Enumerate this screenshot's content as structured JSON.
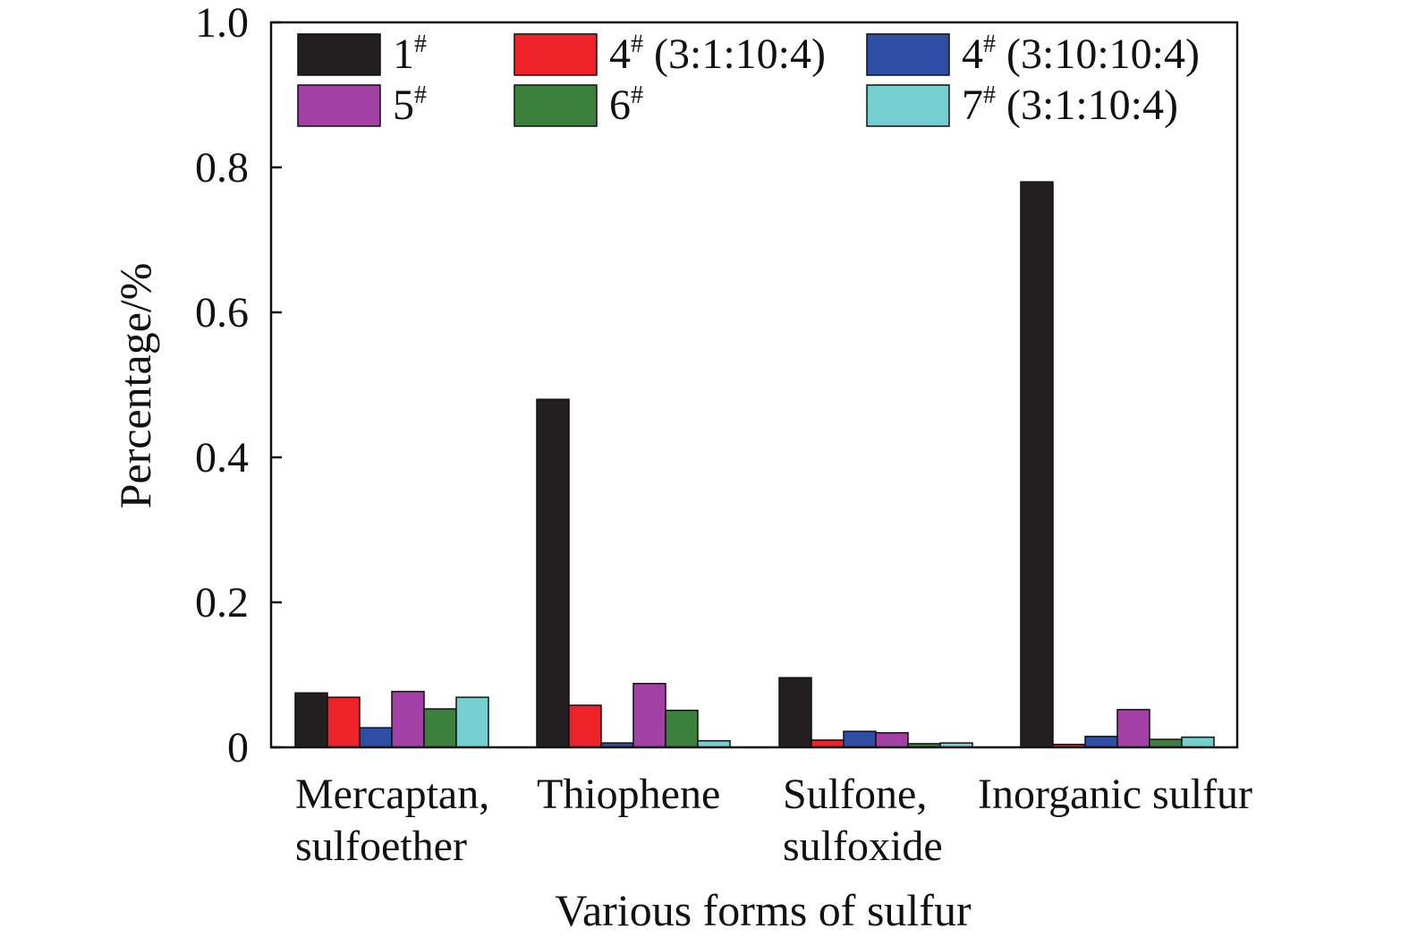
{
  "chart_data": {
    "type": "bar",
    "xlabel": "Various forms of sulfur",
    "ylabel": "Percentage/%",
    "ylim": [
      0,
      1.0
    ],
    "yticks": [
      "0",
      "0.2",
      "0.4",
      "0.6",
      "0.8",
      "1.0"
    ],
    "ytick_values": [
      0,
      0.2,
      0.4,
      0.6,
      0.8,
      1.0
    ],
    "grid": false,
    "legend_position": "top, inside plot area, 3 columns",
    "categories": [
      [
        "Mercaptan,",
        "sulfoether"
      ],
      [
        "Thiophene"
      ],
      [
        "Sulfone,",
        "sulfoxide"
      ],
      [
        "Inorganic sulfur"
      ]
    ],
    "series": [
      {
        "name": "1",
        "sup": "#",
        "suffix": "",
        "color": "#231f20",
        "values": [
          0.075,
          0.48,
          0.096,
          0.78
        ]
      },
      {
        "name": "4",
        "sup": "#",
        "suffix": " (3:1:10:4)",
        "color": "#ee2229",
        "values": [
          0.069,
          0.058,
          0.01,
          0.004
        ]
      },
      {
        "name": "4",
        "sup": "#",
        "suffix": " (3:10:10:4)",
        "color": "#2e4ea3",
        "values": [
          0.027,
          0.006,
          0.022,
          0.015
        ]
      },
      {
        "name": "5",
        "sup": "#",
        "suffix": "",
        "color": "#a340a5",
        "values": [
          0.077,
          0.088,
          0.02,
          0.052
        ]
      },
      {
        "name": "6",
        "sup": "#",
        "suffix": "",
        "color": "#3b803d",
        "values": [
          0.053,
          0.051,
          0.005,
          0.011
        ]
      },
      {
        "name": "7",
        "sup": "#",
        "suffix": " (3:1:10:4)",
        "color": "#74cfd1",
        "values": [
          0.069,
          0.009,
          0.006,
          0.014
        ]
      }
    ]
  }
}
